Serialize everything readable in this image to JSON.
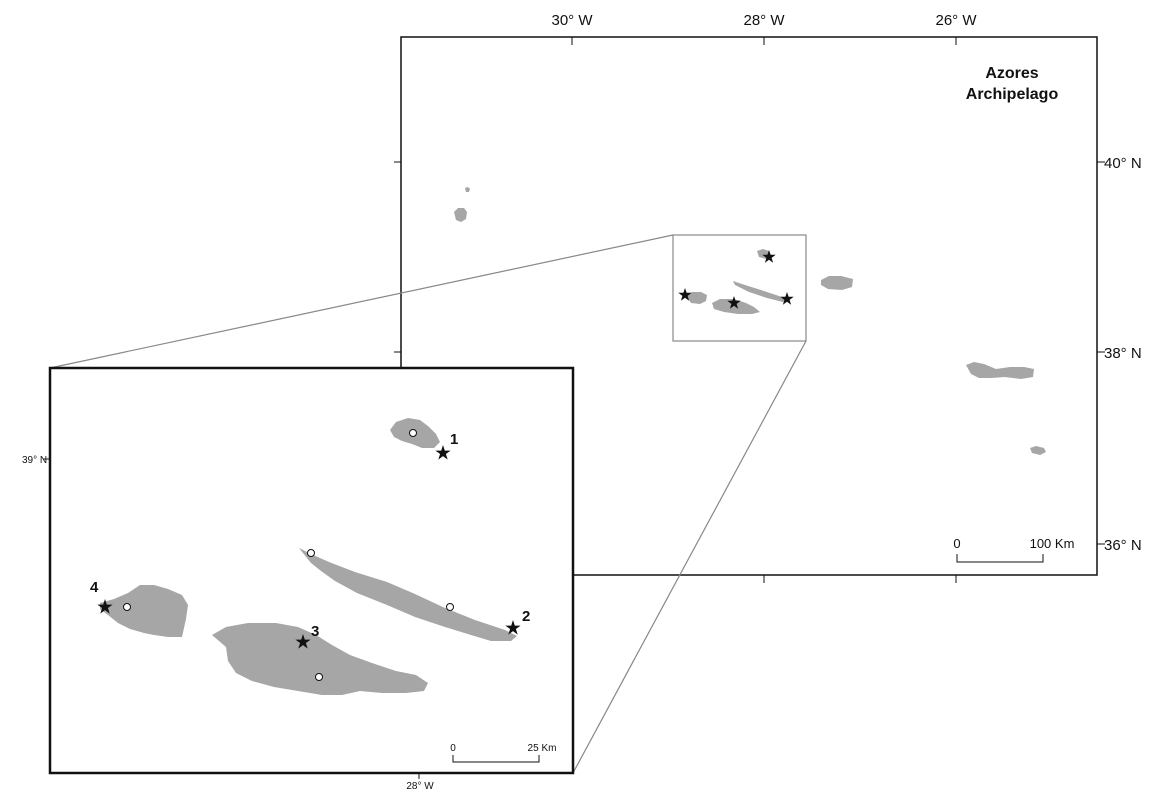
{
  "main_map": {
    "title_line1": "Azores",
    "title_line2": "Archipelago",
    "lon_labels": [
      "30° W",
      "28° W",
      "26° W"
    ],
    "lat_labels": [
      "40° N",
      "38° N",
      "36° N"
    ],
    "scale": {
      "zero": "0",
      "end": "100 Km"
    }
  },
  "inset_map": {
    "lat_label": "39° N",
    "lon_label": "28° W",
    "scale": {
      "zero": "0",
      "end": "25 Km"
    },
    "site_labels": [
      "1",
      "2",
      "3",
      "4"
    ]
  },
  "colors": {
    "land": "#a6a6a6",
    "frame": "#111111",
    "connector": "#888888"
  },
  "icons": {
    "site": "star-icon",
    "town": "circle-marker-icon"
  }
}
